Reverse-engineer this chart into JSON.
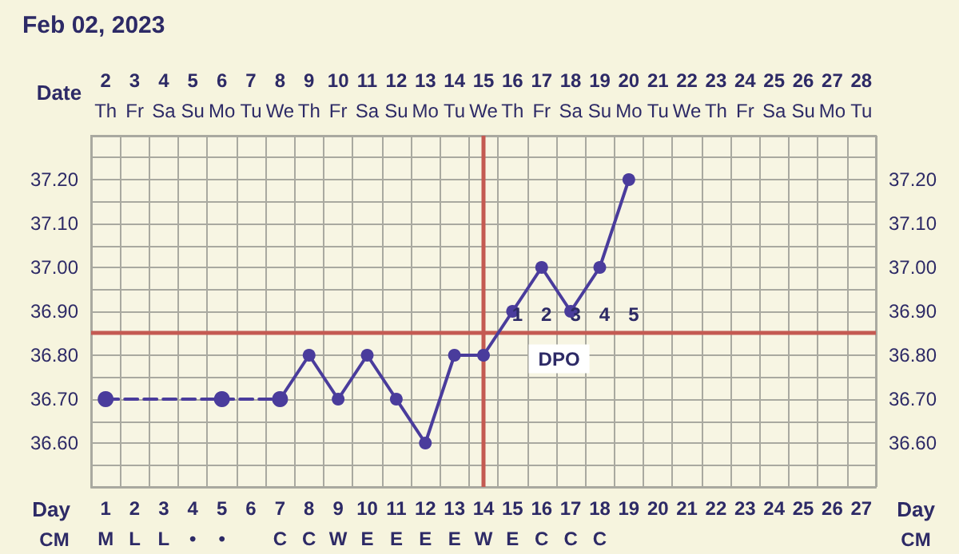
{
  "chart_data": {
    "type": "line",
    "title": "Feb 02, 2023",
    "xlabel": "Day",
    "x2label": "Date",
    "categories": [
      "1\nM",
      "2\nL",
      "3\nL",
      "4\n•",
      "5\n•",
      "6",
      "7\nC",
      "8\nC",
      "9\nW",
      "10\nE",
      "11\nE",
      "12\nE",
      "13\nE",
      "14\nW",
      "15\nE",
      "16\nC",
      "17\nC",
      "18\nC",
      "19",
      "20",
      "21",
      "22",
      "23",
      "24",
      "25",
      "26",
      "27"
    ],
    "series": [
      {
        "color": "#4a3c9c",
        "line_style": "dashed",
        "values": [
          36.7,
          null,
          null,
          null,
          36.7,
          null,
          36.7,
          null,
          null,
          null,
          null,
          null,
          null,
          null,
          null,
          null,
          null,
          null,
          null,
          null,
          null,
          null,
          null,
          null,
          null,
          null,
          null
        ]
      },
      {
        "color": "#4a3c9c",
        "line_style": "solid",
        "values": [
          null,
          null,
          null,
          null,
          null,
          null,
          36.7,
          36.8,
          36.7,
          36.8,
          36.7,
          36.6,
          36.8,
          36.8,
          36.9,
          37.0,
          36.9,
          37.0,
          37.2,
          null,
          null,
          null,
          null,
          null,
          null,
          null,
          null
        ]
      }
    ],
    "marker": "circle",
    "grid": true,
    "ylim": [
      36.5,
      37.3
    ],
    "yticks": [
      {
        "value": 36.5,
        "label": null
      },
      {
        "value": 36.55,
        "label": null
      },
      {
        "value": 36.6,
        "label": "36.60"
      },
      {
        "value": 36.65,
        "label": null
      },
      {
        "value": 36.7,
        "label": "36.70"
      },
      {
        "value": 36.75,
        "label": null
      },
      {
        "value": 36.8,
        "label": "36.80"
      },
      {
        "value": 36.9,
        "label": "36.90"
      },
      {
        "value": 36.95,
        "label": null
      },
      {
        "value": 37.0,
        "label": "37.00"
      },
      {
        "value": 37.05,
        "label": null
      },
      {
        "value": 37.1,
        "label": "37.10"
      },
      {
        "value": 37.15,
        "label": null
      },
      {
        "value": 37.2,
        "label": "37.20"
      },
      {
        "value": 37.25,
        "label": null
      },
      {
        "value": 37.3,
        "label": null
      }
    ],
    "y2lim": [
      36.5,
      37.3
    ],
    "y2ticks": [
      {
        "value": 36.6,
        "label": "36.60"
      },
      {
        "value": 36.7,
        "label": "36.70"
      },
      {
        "value": 36.8,
        "label": "36.80"
      },
      {
        "value": 36.9,
        "label": "36.90"
      },
      {
        "value": 37.0,
        "label": "37.00"
      },
      {
        "value": 37.1,
        "label": "37.10"
      },
      {
        "value": 37.2,
        "label": "37.20"
      }
    ],
    "x2lim": [
      1.5,
      28.5
    ],
    "x2ticks": [
      {
        "value": 2,
        "label": "2\nTh"
      },
      {
        "value": 3,
        "label": "3\nFr"
      },
      {
        "value": 4,
        "label": "4\nSa"
      },
      {
        "value": 5,
        "label": "5\nSu"
      },
      {
        "value": 6,
        "label": "6\nMo"
      },
      {
        "value": 7,
        "label": "7\nTu"
      },
      {
        "value": 8,
        "label": "8\nWe"
      },
      {
        "value": 9,
        "label": "9\nTh"
      },
      {
        "value": 10,
        "label": "10\nFr"
      },
      {
        "value": 11,
        "label": "11\nSa"
      },
      {
        "value": 12,
        "label": "12\nSu"
      },
      {
        "value": 13,
        "label": "13\nMo"
      },
      {
        "value": 14,
        "label": "14\nTu"
      },
      {
        "value": 15,
        "label": "15\nWe"
      },
      {
        "value": 16,
        "label": "16\nTh"
      },
      {
        "value": 17,
        "label": "17\nFr"
      },
      {
        "value": 18,
        "label": "18\nSa"
      },
      {
        "value": 19,
        "label": "19\nSu"
      },
      {
        "value": 20,
        "label": "20\nMo"
      },
      {
        "value": 21,
        "label": "21\nTu"
      },
      {
        "value": 22,
        "label": "22\nWe"
      },
      {
        "value": 23,
        "label": "23\nTh"
      },
      {
        "value": 24,
        "label": "24\nFr"
      },
      {
        "value": 25,
        "label": "25\nSa"
      },
      {
        "value": 26,
        "label": "26\nSu"
      },
      {
        "value": 27,
        "label": "27\nMo"
      },
      {
        "value": 28,
        "label": "28\nTu"
      }
    ],
    "ref_lines": [
      {
        "axis": "x",
        "value": "14\nW",
        "color": "#c45a52"
      },
      {
        "axis": "y",
        "value": 36.85,
        "color": "#c45a52"
      }
    ],
    "annotations": [
      "CM",
      "1",
      "2",
      "3",
      "4",
      "5",
      "DPO"
    ]
  }
}
